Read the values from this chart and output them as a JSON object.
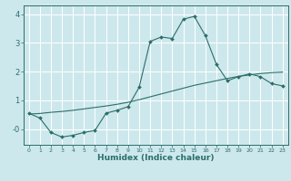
{
  "xlabel": "Humidex (Indice chaleur)",
  "bg_color": "#cde8ec",
  "grid_color": "#ffffff",
  "line_color": "#2a6e6a",
  "xlim": [
    -0.5,
    23.5
  ],
  "ylim": [
    -0.55,
    4.3
  ],
  "yticks": [
    0,
    1,
    2,
    3,
    4
  ],
  "ytick_labels": [
    "-0",
    "1",
    "2",
    "3",
    "4"
  ],
  "xticks": [
    0,
    1,
    2,
    3,
    4,
    5,
    6,
    7,
    8,
    9,
    10,
    11,
    12,
    13,
    14,
    15,
    16,
    17,
    18,
    19,
    20,
    21,
    22,
    23
  ],
  "line1_x": [
    0,
    1,
    2,
    3,
    4,
    5,
    6,
    7,
    8,
    9,
    10,
    11,
    12,
    13,
    14,
    15,
    16,
    17,
    18,
    19,
    20,
    21,
    22,
    23
  ],
  "line1_y": [
    0.55,
    0.38,
    -0.12,
    -0.28,
    -0.22,
    -0.12,
    -0.05,
    0.55,
    0.65,
    0.78,
    1.45,
    3.05,
    3.2,
    3.15,
    3.82,
    3.92,
    3.25,
    2.25,
    1.68,
    1.82,
    1.92,
    1.82,
    1.58,
    1.5
  ],
  "line2_x": [
    0,
    1,
    2,
    3,
    4,
    5,
    6,
    7,
    8,
    9,
    10,
    11,
    12,
    13,
    14,
    15,
    16,
    17,
    18,
    19,
    20,
    21,
    22,
    23
  ],
  "line2_y": [
    0.52,
    0.54,
    0.58,
    0.61,
    0.65,
    0.7,
    0.75,
    0.8,
    0.86,
    0.93,
    1.02,
    1.12,
    1.22,
    1.32,
    1.42,
    1.52,
    1.6,
    1.68,
    1.76,
    1.83,
    1.88,
    1.93,
    1.96,
    1.98
  ]
}
